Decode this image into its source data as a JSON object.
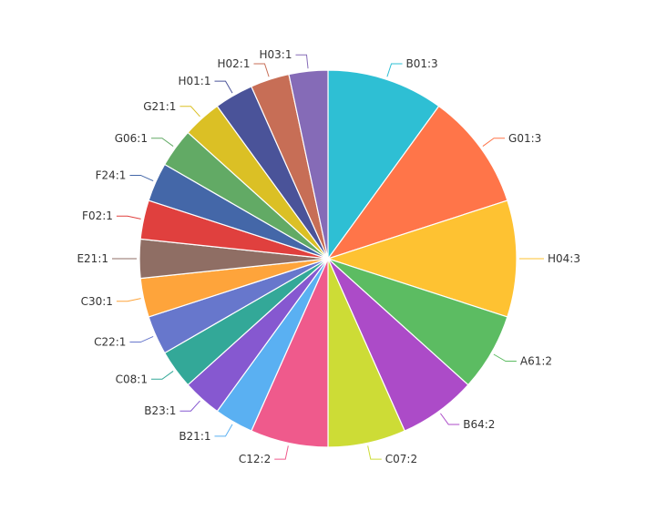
{
  "chart_data": {
    "type": "pie",
    "title": "",
    "slices": [
      {
        "name": "B01",
        "value": 3,
        "label": "B01:3",
        "color": "#2ebfd4"
      },
      {
        "name": "G01",
        "value": 3,
        "label": "G01:3",
        "color": "#ff7549"
      },
      {
        "name": "H04",
        "value": 3,
        "label": "H04:3",
        "color": "#fec232"
      },
      {
        "name": "A61",
        "value": 2,
        "label": "A61:2",
        "color": "#5cbc62"
      },
      {
        "name": "B64",
        "value": 2,
        "label": "B64:2",
        "color": "#ac4bc8"
      },
      {
        "name": "C07",
        "value": 2,
        "label": "C07:2",
        "color": "#cddc36"
      },
      {
        "name": "C12",
        "value": 2,
        "label": "C12:2",
        "color": "#ef5a8c"
      },
      {
        "name": "B21",
        "value": 1,
        "label": "B21:1",
        "color": "#5ab0f2"
      },
      {
        "name": "B23",
        "value": 1,
        "label": "B23:1",
        "color": "#8658d0"
      },
      {
        "name": "C08",
        "value": 1,
        "label": "C08:1",
        "color": "#33a898"
      },
      {
        "name": "C22",
        "value": 1,
        "label": "C22:1",
        "color": "#6777cc"
      },
      {
        "name": "C30",
        "value": 1,
        "label": "C30:1",
        "color": "#fea43b"
      },
      {
        "name": "E21",
        "value": 1,
        "label": "E21:1",
        "color": "#8f6e64"
      },
      {
        "name": "F02",
        "value": 1,
        "label": "F02:1",
        "color": "#e0403e"
      },
      {
        "name": "F24",
        "value": 1,
        "label": "F24:1",
        "color": "#4467a8"
      },
      {
        "name": "G06",
        "value": 1,
        "label": "G06:1",
        "color": "#62aa65"
      },
      {
        "name": "G21",
        "value": 1,
        "label": "G21:1",
        "color": "#dbc025"
      },
      {
        "name": "H01",
        "value": 1,
        "label": "H01:1",
        "color": "#4a5399"
      },
      {
        "name": "H02",
        "value": 1,
        "label": "H02:1",
        "color": "#c76e56"
      },
      {
        "name": "H03",
        "value": 1,
        "label": "H03:1",
        "color": "#856bb7"
      }
    ],
    "start_angle": "12 o'clock",
    "direction": "clockwise",
    "legend": "none"
  }
}
